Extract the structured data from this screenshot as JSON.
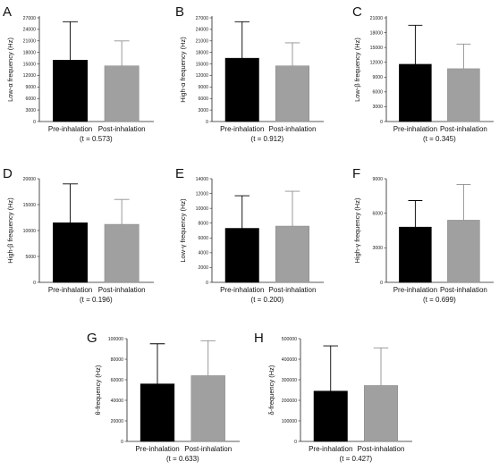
{
  "chart_data": [
    {
      "panel": "A",
      "type": "bar",
      "ylabel": "Low-α frequency (Hz)",
      "ylim": [
        0,
        27000
      ],
      "yticks": [
        "0",
        "3000",
        "6000",
        "9000",
        "12000",
        "15000",
        "18000",
        "21000",
        "24000",
        "27000"
      ],
      "categories": [
        "Pre-inhalation",
        "Post-inhalation"
      ],
      "values": [
        16000,
        14500
      ],
      "error_upper": [
        26000,
        21000
      ],
      "colors": [
        "#000000",
        "#a0a0a0"
      ],
      "annotation": "(t = 0.573)"
    },
    {
      "panel": "B",
      "type": "bar",
      "ylabel": "High-α frequency (Hz)",
      "ylim": [
        0,
        27000
      ],
      "yticks": [
        "0",
        "3000",
        "6000",
        "9000",
        "12000",
        "15000",
        "18000",
        "21000",
        "24000",
        "27000"
      ],
      "categories": [
        "Pre-inhalation",
        "Post-inhalation"
      ],
      "values": [
        16500,
        14500
      ],
      "error_upper": [
        26000,
        20500
      ],
      "colors": [
        "#000000",
        "#a0a0a0"
      ],
      "annotation": "(t = 0.912)"
    },
    {
      "panel": "C",
      "type": "bar",
      "ylabel": "Low-β frequency (Hz)",
      "ylim": [
        0,
        21000
      ],
      "yticks": [
        "0",
        "3000",
        "6000",
        "9000",
        "12000",
        "15000",
        "18000",
        "21000"
      ],
      "categories": [
        "Pre-inhalation",
        "Post-inhalation"
      ],
      "values": [
        11600,
        10700
      ],
      "error_upper": [
        19500,
        15700
      ],
      "colors": [
        "#000000",
        "#a0a0a0"
      ],
      "annotation": "(t = 0.345)"
    },
    {
      "panel": "D",
      "type": "bar",
      "ylabel": "High-β frequency (Hz)",
      "ylim": [
        0,
        20000
      ],
      "yticks": [
        "0",
        "5000",
        "10000",
        "15000",
        "20000"
      ],
      "categories": [
        "Pre-inhalation",
        "Post-inhalation"
      ],
      "values": [
        11500,
        11200
      ],
      "error_upper": [
        19000,
        16000
      ],
      "colors": [
        "#000000",
        "#a0a0a0"
      ],
      "annotation": "(t = 0.196)"
    },
    {
      "panel": "E",
      "type": "bar",
      "ylabel": "Low-γ frequency (Hz)",
      "ylim": [
        0,
        14000
      ],
      "yticks": [
        "0",
        "2000",
        "4000",
        "6000",
        "8000",
        "10000",
        "12000",
        "14000"
      ],
      "categories": [
        "Pre-inhalation",
        "Post-inhalation"
      ],
      "values": [
        7300,
        7600
      ],
      "error_upper": [
        11700,
        12300
      ],
      "colors": [
        "#000000",
        "#a0a0a0"
      ],
      "annotation": "(t = 0.200)"
    },
    {
      "panel": "F",
      "type": "bar",
      "ylabel": "High-γ frequency (Hz)",
      "ylim": [
        0,
        9000
      ],
      "yticks": [
        "0",
        "3000",
        "6000",
        "9000"
      ],
      "categories": [
        "Pre-inhalation",
        "Post-inhalation"
      ],
      "values": [
        4800,
        5400
      ],
      "error_upper": [
        7100,
        8500
      ],
      "colors": [
        "#000000",
        "#a0a0a0"
      ],
      "annotation": "(t = 0.699)"
    },
    {
      "panel": "G",
      "type": "bar",
      "ylabel": "θ-frequency (Hz)",
      "ylim": [
        0,
        100000
      ],
      "yticks": [
        "0",
        "20000",
        "40000",
        "60000",
        "80000",
        "100000"
      ],
      "categories": [
        "Pre-inhalation",
        "Post-inhalation"
      ],
      "values": [
        56000,
        64000
      ],
      "error_upper": [
        95000,
        98000
      ],
      "colors": [
        "#000000",
        "#a0a0a0"
      ],
      "annotation": "(t = 0.633)"
    },
    {
      "panel": "H",
      "type": "bar",
      "ylabel": "δ-frequency (Hz)",
      "ylim": [
        0,
        500000
      ],
      "yticks": [
        "0",
        "100000",
        "200000",
        "300000",
        "400000",
        "500000"
      ],
      "categories": [
        "Pre-inhalation",
        "Post-inhalation"
      ],
      "values": [
        245000,
        272000
      ],
      "error_upper": [
        465000,
        455000
      ],
      "colors": [
        "#000000",
        "#a0a0a0"
      ],
      "annotation": "(t = 0.427)"
    }
  ]
}
